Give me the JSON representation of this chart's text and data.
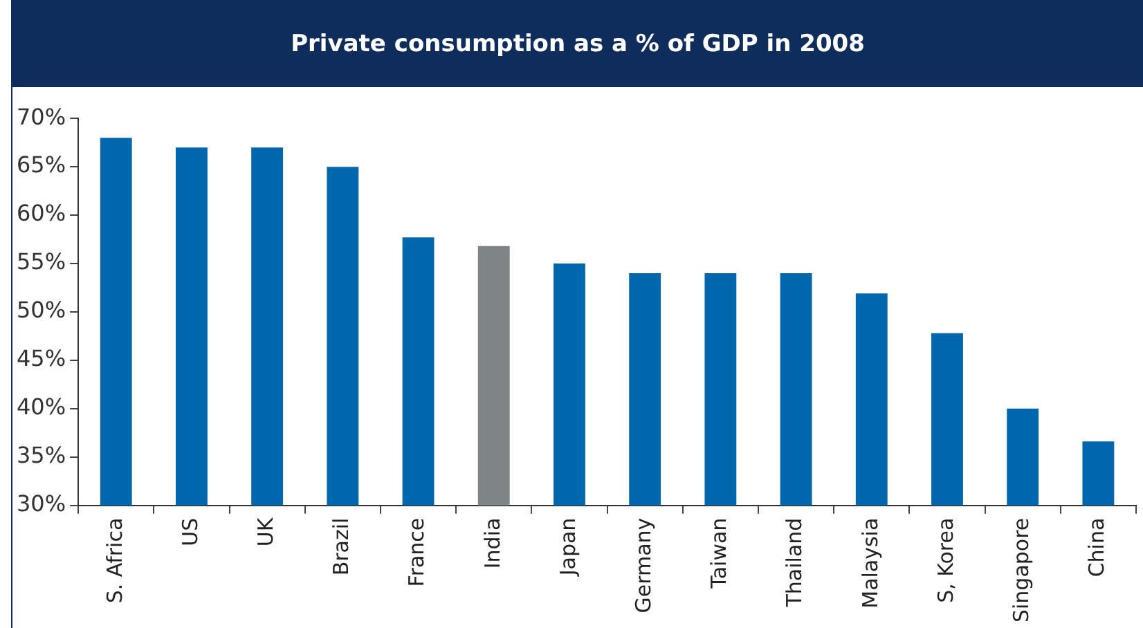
{
  "chart_data": {
    "type": "bar",
    "title": "Private consumption as a % of GDP in 2008",
    "categories": [
      "S. Africa",
      "US",
      "UK",
      "Brazil",
      "France",
      "India",
      "Japan",
      "Germany",
      "Taiwan",
      "Thailand",
      "Malaysia",
      "S, Korea",
      "Singapore",
      "China"
    ],
    "values": [
      68,
      67,
      67,
      65,
      57.7,
      56.8,
      55,
      54,
      54,
      54,
      51.9,
      47.8,
      40,
      36.6
    ],
    "colors": [
      "#0067ac",
      "#0067ac",
      "#0067ac",
      "#0067ac",
      "#0067ac",
      "#7f8487",
      "#0067ac",
      "#0067ac",
      "#0067ac",
      "#0067ac",
      "#0067ac",
      "#0067ac",
      "#0067ac",
      "#0067ac"
    ],
    "ylim": [
      30,
      70
    ],
    "yticks": [
      {
        "value": 30,
        "label": "30%"
      },
      {
        "value": 35,
        "label": "35%"
      },
      {
        "value": 40,
        "label": "40%"
      },
      {
        "value": 45,
        "label": "45%"
      },
      {
        "value": 50,
        "label": "50%"
      },
      {
        "value": 55,
        "label": "55%"
      },
      {
        "value": 60,
        "label": "60%"
      },
      {
        "value": 65,
        "label": "65%"
      },
      {
        "value": 70,
        "label": "70%"
      }
    ],
    "grid": false,
    "legend": false
  }
}
